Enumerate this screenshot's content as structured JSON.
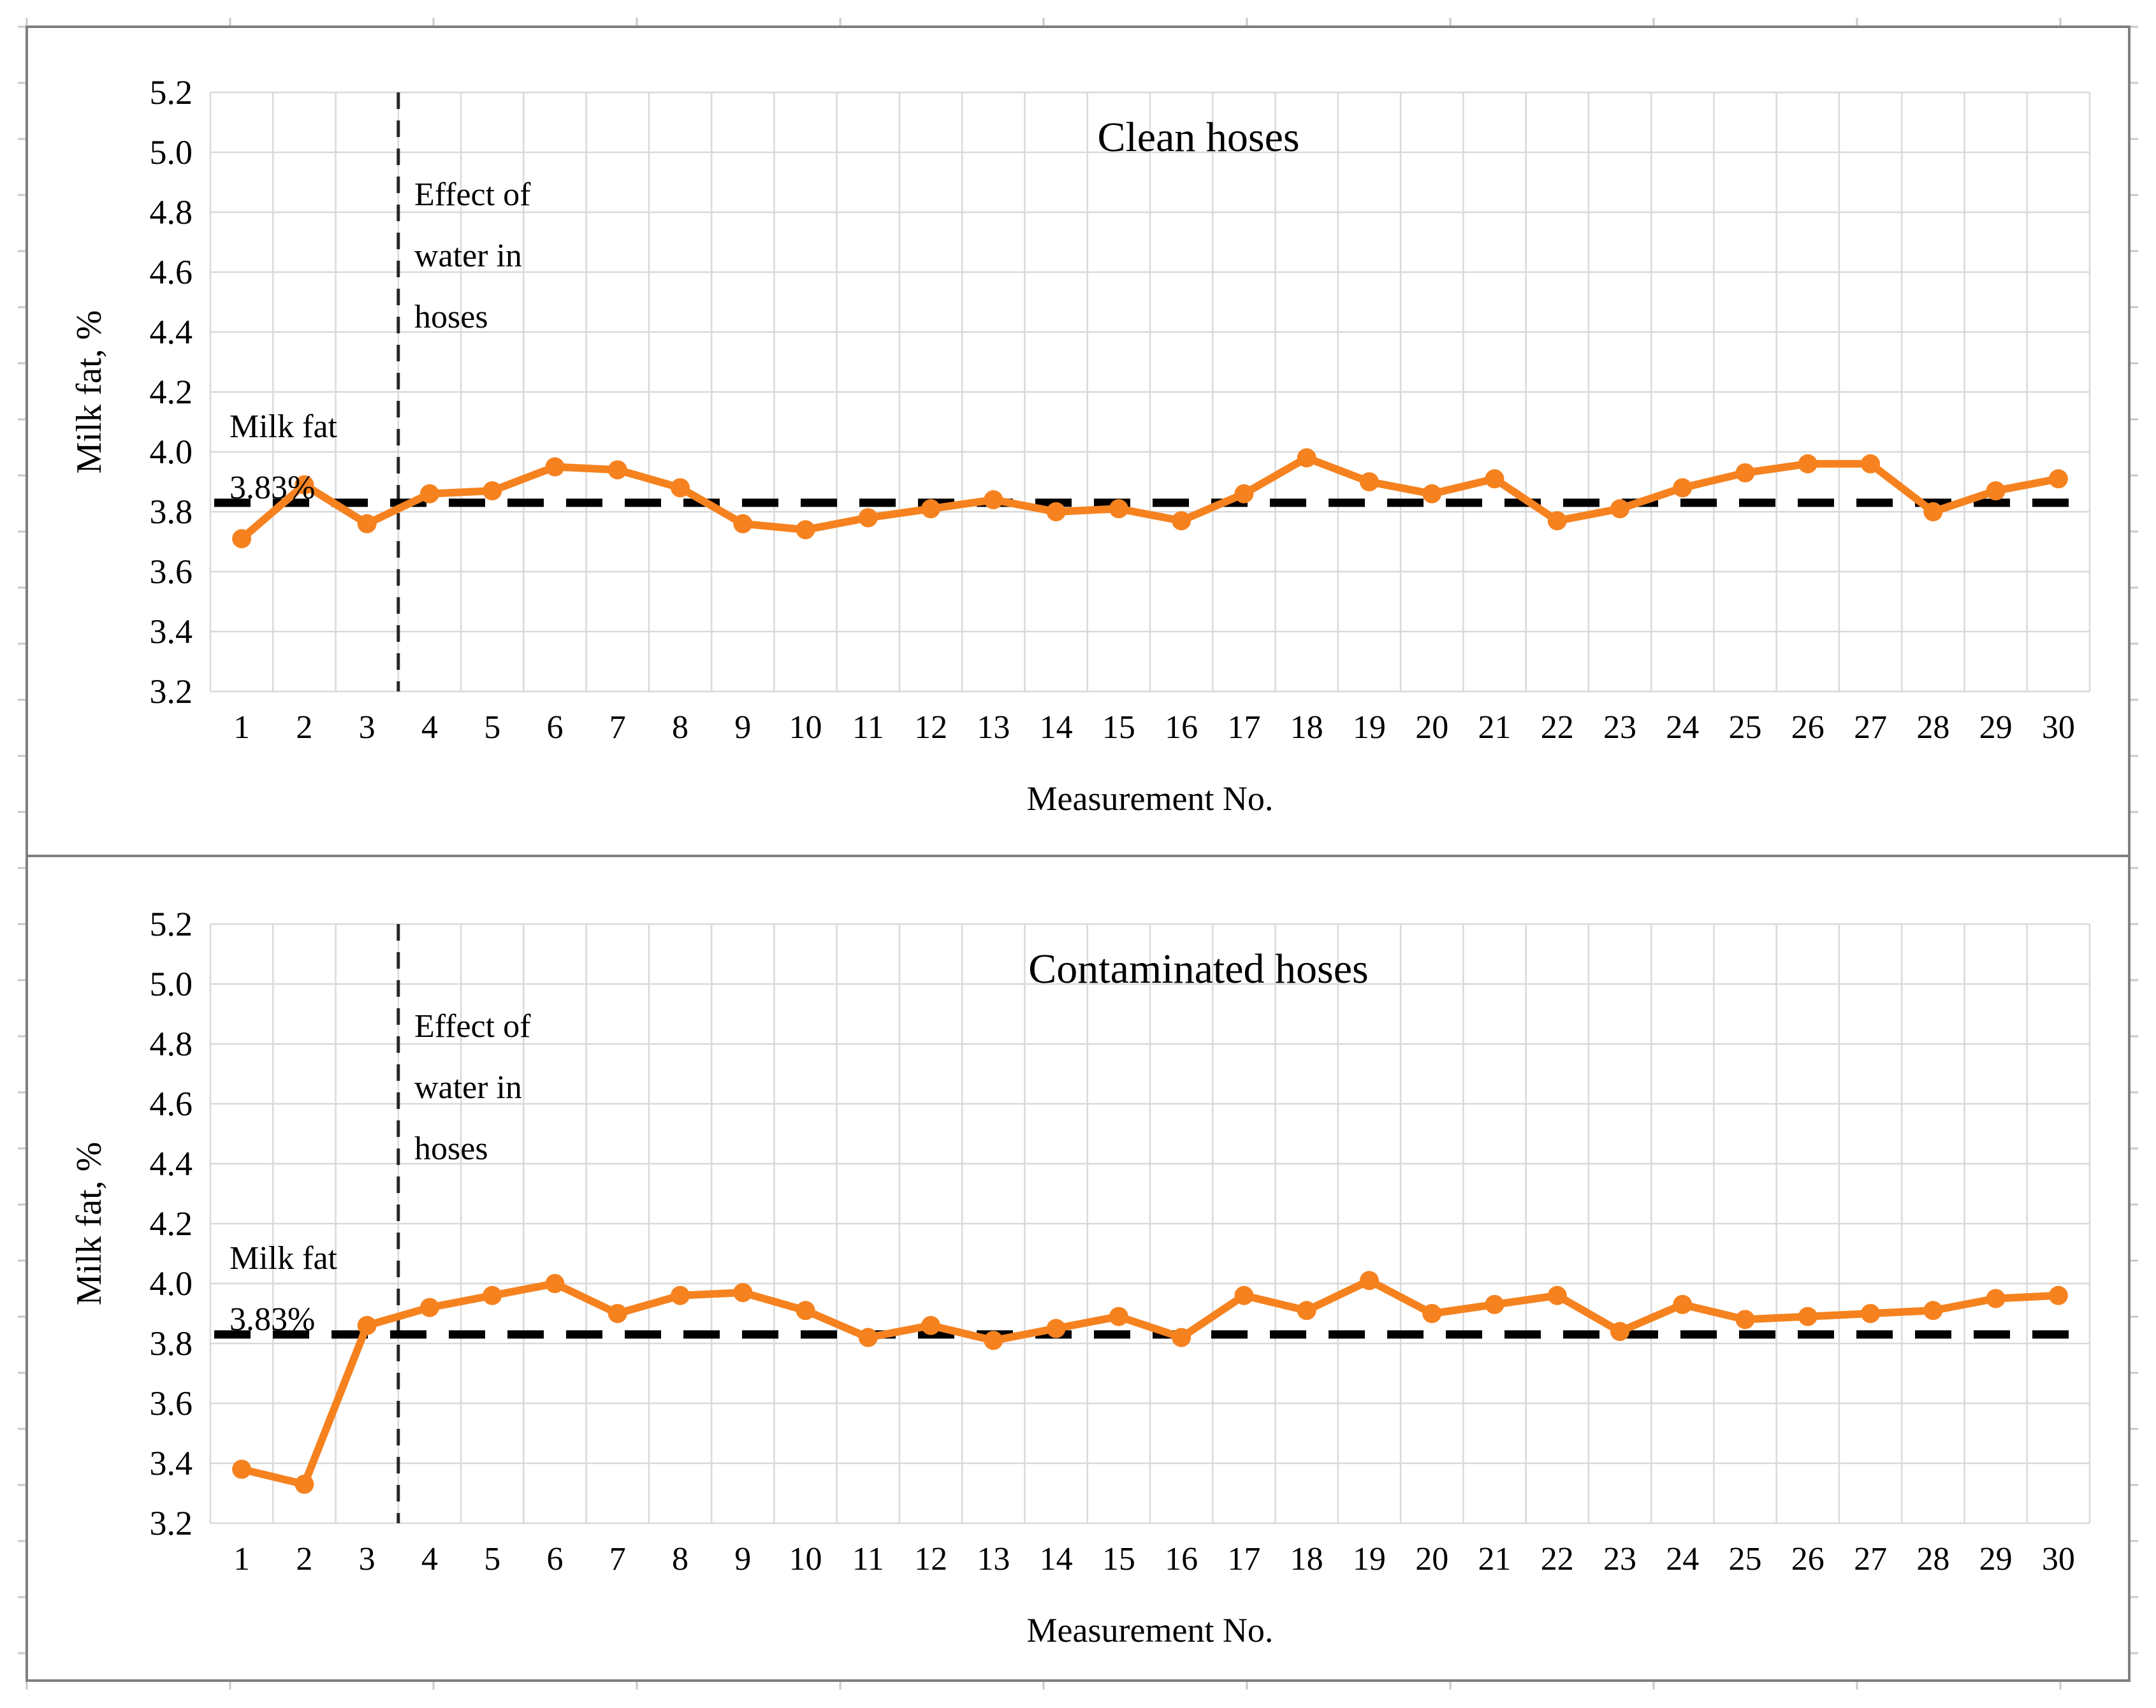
{
  "figure": {
    "background": "#ffffff",
    "outer_border_color": "#7f7f7f",
    "gridline_color": "#d9d9d9",
    "tick_stub_color": "#c9c9c9",
    "reference_line_color": "#000000",
    "event_line_color": "#262626",
    "series_color": "#f5821f"
  },
  "chart_data": [
    {
      "type": "line",
      "title": "Clean hoses",
      "xlabel": "Measurement No.",
      "ylabel": "Milk fat, %",
      "ylim": [
        3.2,
        5.2
      ],
      "ytick_step": 0.2,
      "yticks": [
        "5.2",
        "5.0",
        "4.8",
        "4.6",
        "4.4",
        "4.2",
        "4.0",
        "3.8",
        "3.6",
        "3.4",
        "3.2"
      ],
      "x": [
        1,
        2,
        3,
        4,
        5,
        6,
        7,
        8,
        9,
        10,
        11,
        12,
        13,
        14,
        15,
        16,
        17,
        18,
        19,
        20,
        21,
        22,
        23,
        24,
        25,
        26,
        27,
        28,
        29,
        30
      ],
      "values": [
        3.71,
        3.89,
        3.76,
        3.86,
        3.87,
        3.95,
        3.94,
        3.88,
        3.76,
        3.74,
        3.78,
        3.81,
        3.84,
        3.8,
        3.81,
        3.77,
        3.86,
        3.98,
        3.9,
        3.86,
        3.91,
        3.77,
        3.81,
        3.88,
        3.93,
        3.96,
        3.96,
        3.8,
        3.87,
        3.91
      ],
      "grid": true,
      "legend": "none",
      "reference_line": {
        "value": 3.83,
        "style": "dashed",
        "label_line1": "Milk fat",
        "label_line2": "3.83%"
      },
      "event_line": {
        "x": 3.5,
        "style": "dashed",
        "label_line1": "Effect of",
        "label_line2": "water in",
        "label_line3": "hoses"
      }
    },
    {
      "type": "line",
      "title": "Contaminated hoses",
      "xlabel": "Measurement No.",
      "ylabel": "Milk fat, %",
      "ylim": [
        3.2,
        5.2
      ],
      "ytick_step": 0.2,
      "yticks": [
        "5.2",
        "5.0",
        "4.8",
        "4.6",
        "4.4",
        "4.2",
        "4.0",
        "3.8",
        "3.6",
        "3.4",
        "3.2"
      ],
      "x": [
        1,
        2,
        3,
        4,
        5,
        6,
        7,
        8,
        9,
        10,
        11,
        12,
        13,
        14,
        15,
        16,
        17,
        18,
        19,
        20,
        21,
        22,
        23,
        24,
        25,
        26,
        27,
        28,
        29,
        30
      ],
      "values": [
        3.38,
        3.33,
        3.86,
        3.92,
        3.96,
        4.0,
        3.9,
        3.96,
        3.97,
        3.91,
        3.82,
        3.86,
        3.81,
        3.85,
        3.89,
        3.82,
        3.96,
        3.91,
        4.01,
        3.9,
        3.93,
        3.96,
        3.84,
        3.93,
        3.88,
        3.89,
        3.9,
        3.91,
        3.95,
        3.96
      ],
      "grid": true,
      "legend": "none",
      "reference_line": {
        "value": 3.83,
        "style": "dashed",
        "label_line1": "Milk fat",
        "label_line2": "3.83%"
      },
      "event_line": {
        "x": 3.5,
        "style": "dashed",
        "label_line1": "Effect of",
        "label_line2": "water in",
        "label_line3": "hoses"
      }
    }
  ]
}
